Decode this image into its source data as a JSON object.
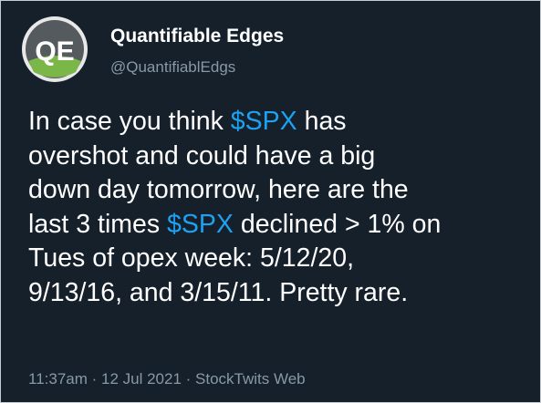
{
  "tweet": {
    "avatar": {
      "label": "QE"
    },
    "author": {
      "name": "Quantifiable Edges",
      "handle": "@QuantifiablEdgs"
    },
    "body": [
      [
        "In case you think ",
        "$SPX",
        " has"
      ],
      [
        "overshot and could have a big"
      ],
      [
        "down day tomorrow, here are the"
      ],
      [
        "last 3 times ",
        "$SPX",
        " declined > 1% on"
      ],
      [
        "Tues of opex week: 5/12/20,"
      ],
      [
        "9/13/16, and 3/15/11. Pretty rare."
      ]
    ],
    "footer": "11:37am · 12 Jul 2021 · StockTwits Web"
  }
}
